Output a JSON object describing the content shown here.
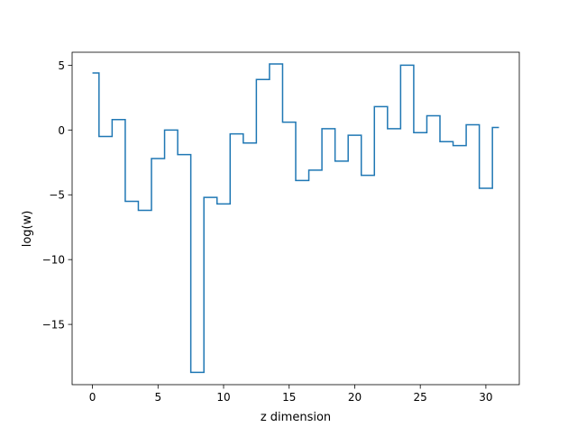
{
  "chart_data": {
    "type": "line",
    "drawstyle": "steps-mid",
    "xlabel": "z dimension",
    "ylabel": "log(w)",
    "xlim": [
      -1.55,
      32.55
    ],
    "ylim": [
      -19.65,
      6.0
    ],
    "grid": false,
    "x_ticks": [
      0,
      5,
      10,
      15,
      20,
      25,
      30
    ],
    "y_ticks": [
      -15,
      -10,
      -5,
      0,
      5
    ],
    "series": [
      {
        "color": "#1f77b4",
        "x": [
          0,
          1,
          2,
          3,
          4,
          5,
          6,
          7,
          8,
          9,
          10,
          11,
          12,
          13,
          14,
          15,
          16,
          17,
          18,
          19,
          20,
          21,
          22,
          23,
          24,
          25,
          26,
          27,
          28,
          29,
          30,
          31
        ],
        "y": [
          4.4,
          -0.5,
          0.8,
          -5.5,
          -6.2,
          -2.2,
          0.0,
          -1.9,
          -18.7,
          -5.2,
          -5.7,
          -0.3,
          -1.0,
          3.9,
          5.1,
          0.6,
          -3.9,
          -3.1,
          0.1,
          -2.4,
          -0.4,
          -3.5,
          1.8,
          0.1,
          5.0,
          -0.2,
          1.1,
          -0.9,
          -1.2,
          0.4,
          -4.5,
          0.2
        ]
      }
    ]
  }
}
